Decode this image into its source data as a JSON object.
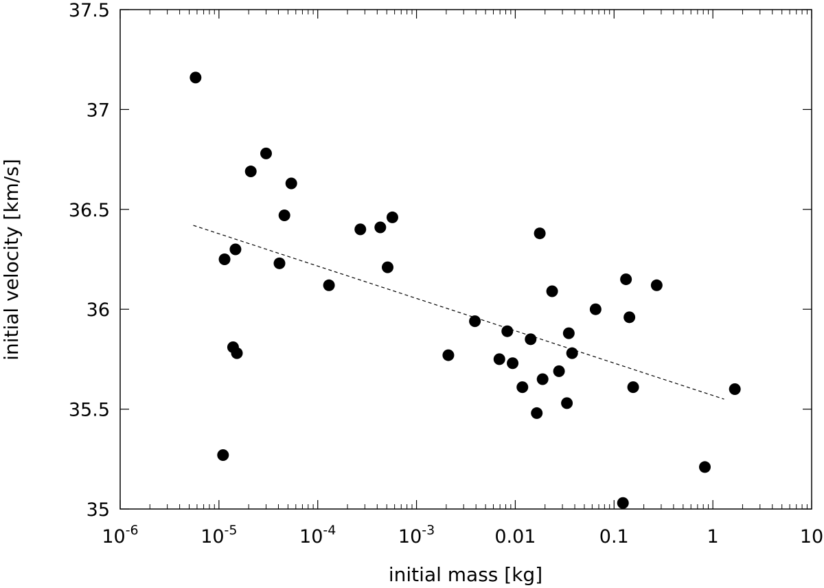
{
  "chart_data": {
    "type": "scatter",
    "title": "",
    "xlabel": "initial mass [kg]",
    "ylabel": "initial velocity [km/s]",
    "xscale": "log",
    "xlim": [
      1e-06,
      10
    ],
    "ylim": [
      35,
      37.5
    ],
    "grid": false,
    "legend": "none",
    "x_ticks": [
      {
        "value": 1e-06,
        "base": "10",
        "exp": "-6"
      },
      {
        "value": 1e-05,
        "base": "10",
        "exp": "-5"
      },
      {
        "value": 0.0001,
        "base": "10",
        "exp": "-4"
      },
      {
        "value": 0.001,
        "base": "10",
        "exp": "-3"
      },
      {
        "value": 0.01,
        "base": "0.01",
        "exp": ""
      },
      {
        "value": 0.1,
        "base": "0.1",
        "exp": ""
      },
      {
        "value": 1,
        "base": "1",
        "exp": ""
      },
      {
        "value": 10,
        "base": "10",
        "exp": ""
      }
    ],
    "y_ticks": [
      {
        "value": 35,
        "label": "35"
      },
      {
        "value": 35.5,
        "label": "35.5"
      },
      {
        "value": 36,
        "label": "36"
      },
      {
        "value": 36.5,
        "label": "36.5"
      },
      {
        "value": 37,
        "label": "37"
      },
      {
        "value": 37.5,
        "label": "37.5"
      }
    ],
    "points": [
      {
        "x": 5.8e-06,
        "y": 37.16
      },
      {
        "x": 2.1e-05,
        "y": 36.69
      },
      {
        "x": 3e-05,
        "y": 36.78
      },
      {
        "x": 5.4e-05,
        "y": 36.63
      },
      {
        "x": 4.6e-05,
        "y": 36.47
      },
      {
        "x": 1.14e-05,
        "y": 36.25
      },
      {
        "x": 1.47e-05,
        "y": 36.3
      },
      {
        "x": 4.1e-05,
        "y": 36.23
      },
      {
        "x": 1.39e-05,
        "y": 35.81
      },
      {
        "x": 1.52e-05,
        "y": 35.78
      },
      {
        "x": 1.1e-05,
        "y": 35.27
      },
      {
        "x": 0.00013,
        "y": 36.12
      },
      {
        "x": 0.00027,
        "y": 36.4
      },
      {
        "x": 0.00043,
        "y": 36.41
      },
      {
        "x": 0.00057,
        "y": 36.46
      },
      {
        "x": 0.00051,
        "y": 36.21
      },
      {
        "x": 0.0021,
        "y": 35.77
      },
      {
        "x": 0.0039,
        "y": 35.94
      },
      {
        "x": 0.0069,
        "y": 35.75
      },
      {
        "x": 0.0083,
        "y": 35.89
      },
      {
        "x": 0.0094,
        "y": 35.73
      },
      {
        "x": 0.0118,
        "y": 35.61
      },
      {
        "x": 0.0143,
        "y": 35.85
      },
      {
        "x": 0.0165,
        "y": 35.48
      },
      {
        "x": 0.0177,
        "y": 36.38
      },
      {
        "x": 0.0189,
        "y": 35.65
      },
      {
        "x": 0.0236,
        "y": 36.09
      },
      {
        "x": 0.0277,
        "y": 35.69
      },
      {
        "x": 0.0333,
        "y": 35.53
      },
      {
        "x": 0.0348,
        "y": 35.88
      },
      {
        "x": 0.0376,
        "y": 35.78
      },
      {
        "x": 0.065,
        "y": 36.0
      },
      {
        "x": 0.123,
        "y": 35.03
      },
      {
        "x": 0.132,
        "y": 36.15
      },
      {
        "x": 0.143,
        "y": 35.96
      },
      {
        "x": 0.156,
        "y": 35.61
      },
      {
        "x": 0.27,
        "y": 36.12
      },
      {
        "x": 0.83,
        "y": 35.21
      },
      {
        "x": 1.67,
        "y": 35.6
      }
    ],
    "fit_line": {
      "style": "dashed",
      "x": [
        5.5e-06,
        1.3
      ],
      "y": [
        36.42,
        35.55
      ]
    }
  }
}
